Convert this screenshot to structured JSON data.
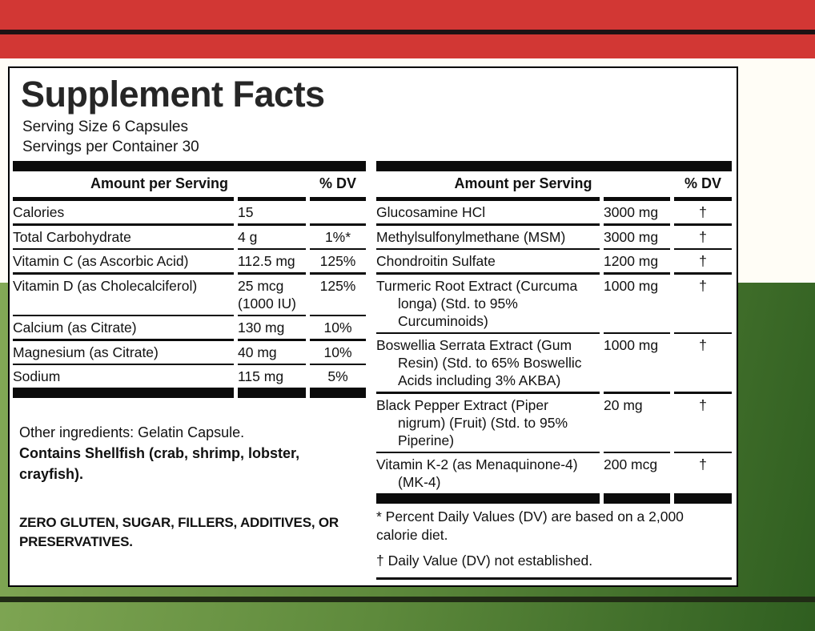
{
  "panel": {
    "title": "Supplement Facts",
    "serving_size": "Serving Size 6 Capsules",
    "servings_per_container": "Servings per Container 30"
  },
  "tables": {
    "left": {
      "header": {
        "amount_label": "Amount per Serving",
        "dv_label": "% DV"
      },
      "rows": [
        {
          "name": "Calories",
          "amount": "15",
          "dv": ""
        },
        {
          "name": "Total Carbohydrate",
          "amount": "4 g",
          "dv": "1%*"
        },
        {
          "name": "Vitamin C (as Ascorbic Acid)",
          "amount": "112.5 mg",
          "dv": "125%"
        },
        {
          "name": "Vitamin D (as Cholecalciferol)",
          "amount": "25 mcg (1000 IU)",
          "dv": "125%"
        },
        {
          "name": "Calcium (as Citrate)",
          "amount": "130 mg",
          "dv": "10%"
        },
        {
          "name": "Magnesium (as Citrate)",
          "amount": "40 mg",
          "dv": "10%"
        },
        {
          "name": "Sodium",
          "amount": "115 mg",
          "dv": "5%"
        }
      ]
    },
    "right": {
      "header": {
        "amount_label": "Amount per Serving",
        "dv_label": "% DV"
      },
      "rows": [
        {
          "name": "Glucosamine HCl",
          "amount": "3000 mg",
          "dv": "†"
        },
        {
          "name": "Methylsulfonylmethane (MSM)",
          "amount": "3000 mg",
          "dv": "†"
        },
        {
          "name": "Chondroitin Sulfate",
          "amount": "1200 mg",
          "dv": "†"
        },
        {
          "name": "Turmeric Root Extract (Curcuma longa) (Std. to 95% Curcuminoids)",
          "amount": "1000 mg",
          "dv": "†"
        },
        {
          "name": "Boswellia Serrata Extract (Gum Resin) (Std. to 65% Boswellic Acids including 3% AKBA)",
          "amount": "1000 mg",
          "dv": "†"
        },
        {
          "name": "Black Pepper Extract (Piper nigrum) (Fruit) (Std. to 95% Piperine)",
          "amount": "20 mg",
          "dv": "†"
        },
        {
          "name": "Vitamin K-2 (as Menaquinone-4) (MK-4)",
          "amount": "200 mcg",
          "dv": "†"
        }
      ]
    }
  },
  "notes": {
    "other_ingredients": "Other ingredients: Gelatin Capsule.",
    "contains": "Contains Shellfish (crab, shrimp, lobster, crayfish).",
    "claim": "ZERO GLUTEN, SUGAR, FILLERS, ADDITIVES, OR PRESERVATIVES."
  },
  "footnotes": [
    "* Percent Daily Values (DV) are based on a 2,000 calorie diet.",
    "† Daily Value (DV) not established."
  ],
  "colors": {
    "red_band": "#d23734",
    "red_dark_stripe": "#1e1214",
    "upper_background": "#fffdf6",
    "green_light": "#83a956",
    "green_dark": "#2f5e20",
    "green_dark_stripe": "#202b15",
    "bar_black": "#0b0b0b"
  }
}
